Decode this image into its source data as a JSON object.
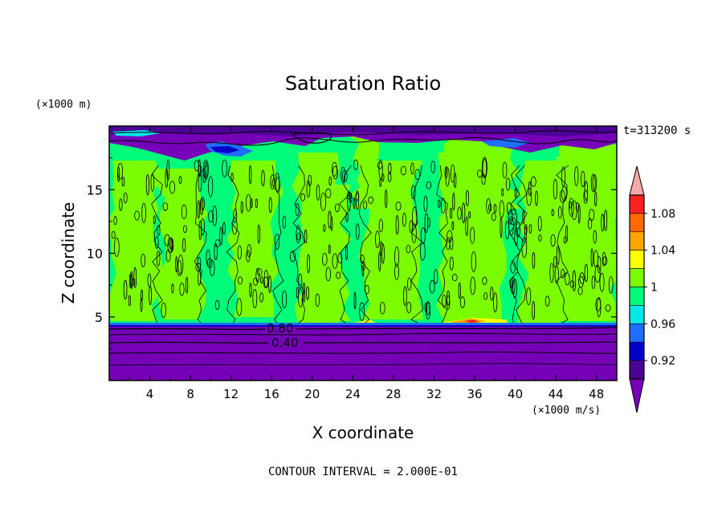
{
  "chart_data": {
    "type": "heatmap",
    "title": "Saturation Ratio",
    "xlabel": "X coordinate",
    "ylabel": "Z coordinate",
    "x_unit": "(×1000 m/s)",
    "y_unit": "(×1000 m)",
    "time_label": "t=313200 s",
    "footer": "CONTOUR INTERVAL = 2.000E-01",
    "xlim": [
      0,
      50
    ],
    "ylim": [
      0,
      20
    ],
    "x_ticks": [
      "4",
      "8",
      "12",
      "16",
      "20",
      "24",
      "28",
      "32",
      "36",
      "40",
      "44",
      "48"
    ],
    "y_ticks": [
      "5",
      "10",
      "15"
    ],
    "contour_labels": [
      {
        "text": "0.80",
        "x": 17,
        "z": 4.3
      },
      {
        "text": "0.40",
        "x": 17,
        "z": 2.9
      }
    ],
    "colorbar": {
      "labels": [
        "1.08",
        "1.04",
        "1",
        "0.96",
        "0.92"
      ],
      "colors": {
        "above": "#f4a8a8",
        "c1": "#ff2020",
        "c2": "#ff6a00",
        "c3": "#ffa500",
        "c4": "#ffff00",
        "c5": "#7cfc00",
        "c6": "#00fa7a",
        "c7": "#00e8e8",
        "c8": "#1e6fff",
        "c9": "#0000c8",
        "c10": "#4b0096",
        "below": "#7600b8"
      }
    },
    "field_regions": [
      {
        "name": "lower-dry-layer",
        "x": [
          0,
          50
        ],
        "z": [
          0,
          4.5
        ],
        "value": "< 0.92"
      },
      {
        "name": "saturated-mid-layer",
        "x": [
          0,
          50
        ],
        "z": [
          4.5,
          17.5
        ],
        "value": "0.98 - 1.02"
      },
      {
        "name": "upper-dry-layer",
        "x": [
          0,
          50
        ],
        "z": [
          18.5,
          20
        ],
        "value": "< 0.92"
      }
    ]
  }
}
